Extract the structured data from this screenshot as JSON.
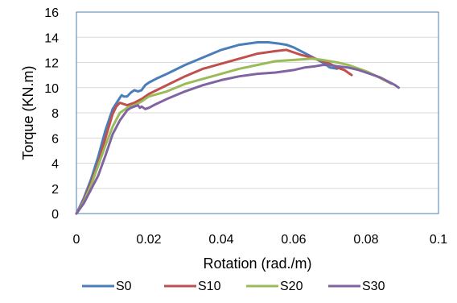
{
  "chart_data": {
    "type": "line",
    "title": "",
    "xlabel": "Rotation (rad./m)",
    "ylabel": "Torque (KN.m)",
    "xlim": [
      0,
      0.1
    ],
    "ylim": [
      0,
      16
    ],
    "x_ticks": [
      0,
      0.02,
      0.04,
      0.06,
      0.08,
      0.1
    ],
    "x_tick_labels": [
      "0",
      "0.02",
      "0.04",
      "0.06",
      "0.08",
      "0.1"
    ],
    "y_ticks": [
      0,
      2,
      4,
      6,
      8,
      10,
      12,
      14,
      16
    ],
    "y_tick_labels": [
      "0",
      "2",
      "4",
      "6",
      "8",
      "10",
      "12",
      "14",
      "16"
    ],
    "grid": "horizontal",
    "legend_position": "bottom",
    "series": [
      {
        "name": "S0",
        "color": "#4A7EBB",
        "x": [
          0,
          0.002,
          0.004,
          0.006,
          0.008,
          0.01,
          0.012,
          0.0125,
          0.013,
          0.014,
          0.015,
          0.016,
          0.017,
          0.018,
          0.019,
          0.02,
          0.022,
          0.025,
          0.03,
          0.035,
          0.04,
          0.045,
          0.05,
          0.053,
          0.056,
          0.058,
          0.06,
          0.062,
          0.064,
          0.066,
          0.068,
          0.07,
          0.072
        ],
        "y": [
          0,
          1.2,
          2.7,
          4.5,
          6.6,
          8.3,
          9.2,
          9.4,
          9.3,
          9.3,
          9.6,
          9.8,
          9.7,
          9.8,
          10.2,
          10.4,
          10.7,
          11.1,
          11.8,
          12.4,
          13.0,
          13.4,
          13.6,
          13.6,
          13.5,
          13.4,
          13.2,
          12.9,
          12.6,
          12.3,
          12.0,
          11.6,
          11.5
        ]
      },
      {
        "name": "S10",
        "color": "#C0504D",
        "x": [
          0,
          0.002,
          0.004,
          0.006,
          0.008,
          0.01,
          0.011,
          0.012,
          0.013,
          0.014,
          0.016,
          0.018,
          0.02,
          0.025,
          0.03,
          0.035,
          0.04,
          0.045,
          0.05,
          0.055,
          0.058,
          0.059,
          0.06,
          0.062,
          0.065,
          0.068,
          0.07,
          0.072,
          0.074,
          0.076
        ],
        "y": [
          0,
          1.0,
          2.4,
          4.0,
          6.0,
          7.9,
          8.5,
          8.8,
          8.7,
          8.6,
          8.8,
          9.1,
          9.5,
          10.2,
          10.9,
          11.5,
          11.9,
          12.3,
          12.7,
          12.9,
          13.0,
          12.9,
          12.8,
          12.6,
          12.4,
          12.1,
          11.9,
          11.6,
          11.4,
          11.0
        ]
      },
      {
        "name": "S20",
        "color": "#9BBB59",
        "x": [
          0,
          0.002,
          0.004,
          0.006,
          0.008,
          0.01,
          0.012,
          0.014,
          0.015,
          0.016,
          0.018,
          0.02,
          0.025,
          0.03,
          0.035,
          0.04,
          0.045,
          0.05,
          0.055,
          0.06,
          0.065,
          0.068,
          0.072,
          0.075,
          0.078,
          0.08,
          0.083,
          0.085,
          0.087
        ],
        "y": [
          0,
          0.9,
          2.2,
          3.8,
          5.4,
          6.9,
          8.0,
          8.4,
          8.5,
          8.6,
          8.9,
          9.3,
          9.7,
          10.3,
          10.7,
          11.1,
          11.5,
          11.8,
          12.1,
          12.2,
          12.3,
          12.2,
          12.0,
          11.8,
          11.5,
          11.3,
          10.9,
          10.6,
          10.3
        ]
      },
      {
        "name": "S30",
        "color": "#8064A2",
        "x": [
          0,
          0.002,
          0.004,
          0.006,
          0.008,
          0.01,
          0.012,
          0.014,
          0.015,
          0.016,
          0.017,
          0.0175,
          0.018,
          0.019,
          0.02,
          0.022,
          0.025,
          0.03,
          0.035,
          0.04,
          0.045,
          0.05,
          0.055,
          0.06,
          0.063,
          0.066,
          0.068,
          0.07,
          0.072,
          0.075,
          0.078,
          0.08,
          0.082,
          0.084,
          0.086,
          0.088,
          0.089
        ],
        "y": [
          0,
          0.8,
          1.9,
          3.0,
          4.6,
          6.3,
          7.4,
          8.2,
          8.4,
          8.5,
          8.6,
          8.4,
          8.5,
          8.3,
          8.4,
          8.7,
          9.1,
          9.7,
          10.2,
          10.6,
          10.9,
          11.1,
          11.2,
          11.4,
          11.6,
          11.7,
          11.8,
          11.8,
          11.7,
          11.6,
          11.4,
          11.2,
          11.0,
          10.8,
          10.5,
          10.2,
          10.0
        ]
      }
    ]
  }
}
